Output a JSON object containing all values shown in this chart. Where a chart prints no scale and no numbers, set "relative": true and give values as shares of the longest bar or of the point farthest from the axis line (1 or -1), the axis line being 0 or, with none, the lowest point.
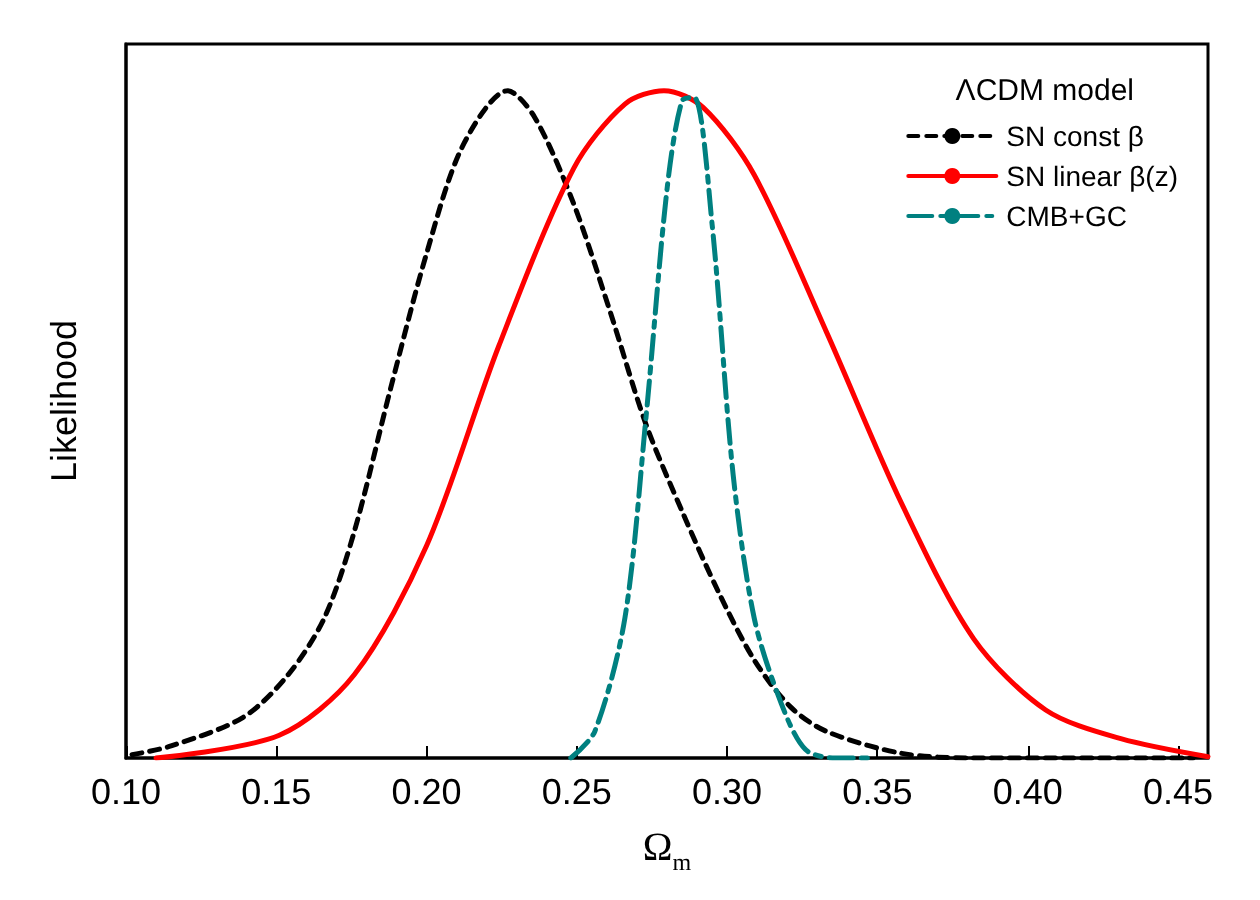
{
  "chart_data": {
    "type": "line",
    "xlabel": "Ω$_{m}$",
    "ylabel": "Likelihood",
    "legend_title": "ΛCDM model",
    "legend": "top right",
    "marker": "none",
    "relative": true,
    "grid": false,
    "xlim": [
      0.1,
      0.46
    ],
    "xticks": [
      {
        "value": 0.1,
        "label": "0.10"
      },
      {
        "value": 0.15,
        "label": "0.15"
      },
      {
        "value": 0.2,
        "label": "0.20"
      },
      {
        "value": 0.25,
        "label": "0.25"
      },
      {
        "value": 0.3,
        "label": "0.30"
      },
      {
        "value": 0.35,
        "label": "0.35"
      },
      {
        "value": 0.4,
        "label": "0.40"
      },
      {
        "value": 0.45,
        "label": "0.45"
      }
    ],
    "series": [
      {
        "name": "SN const β",
        "color": "#000000",
        "line_style": "dashed",
        "x": [
          0.102,
          0.115,
          0.139,
          0.154,
          0.166,
          0.176,
          0.188,
          0.2,
          0.212,
          0.227,
          0.236,
          0.249,
          0.261,
          0.273,
          0.285,
          0.297,
          0.309,
          0.321,
          0.333,
          0.358,
          0.382,
          0.455
        ],
        "values": [
          0.005,
          0.018,
          0.061,
          0.125,
          0.21,
          0.34,
          0.553,
          0.756,
          0.917,
          1,
          0.96,
          0.83,
          0.67,
          0.5,
          0.37,
          0.25,
          0.147,
          0.077,
          0.04,
          0.007,
          0,
          0
        ]
      },
      {
        "name": "SN linear β(z)",
        "color": "#ff0000",
        "line_style": "solid",
        "x": [
          0.11,
          0.151,
          0.176,
          0.2,
          0.224,
          0.249,
          0.266,
          0.279,
          0.292,
          0.309,
          0.333,
          0.358,
          0.382,
          0.406,
          0.431,
          0.46
        ],
        "values": [
          0,
          0.034,
          0.125,
          0.318,
          0.617,
          0.884,
          0.98,
          1,
          0.975,
          0.874,
          0.639,
          0.382,
          0.179,
          0.072,
          0.029,
          0.002
        ]
      },
      {
        "name": "CMB+GC",
        "color": "#008080",
        "line_style": "dashdot",
        "x": [
          0.248,
          0.256,
          0.266,
          0.273,
          0.28,
          0.285,
          0.289,
          0.295,
          0.302,
          0.309,
          0.318,
          0.326,
          0.336,
          0.349
        ],
        "values": [
          0,
          0.04,
          0.21,
          0.51,
          0.852,
          0.985,
          0.99,
          0.8,
          0.425,
          0.21,
          0.082,
          0.013,
          0,
          0
        ]
      }
    ]
  }
}
